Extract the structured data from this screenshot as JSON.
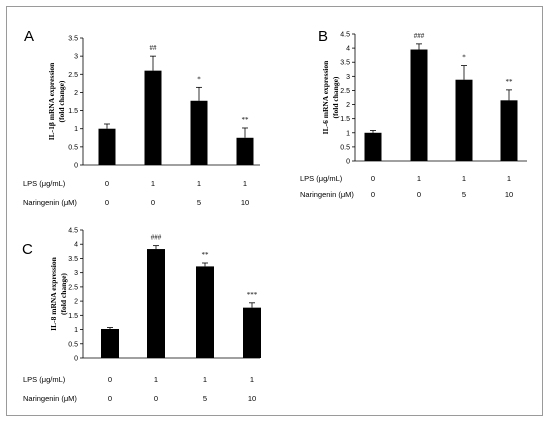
{
  "chart_data": [
    {
      "type": "bar",
      "panel": "A",
      "ylabel": "IL-1β mRNA expression",
      "ylabel2": "(fold change)",
      "ylim": [
        0,
        3.5
      ],
      "yticks": [
        "0",
        "0.5",
        "1",
        "1.5",
        "2",
        "2.5",
        "3",
        "3.5"
      ],
      "values": [
        1.0,
        2.6,
        1.77,
        0.75
      ],
      "errors": [
        0.13,
        0.4,
        0.37,
        0.27
      ],
      "significance": [
        "",
        "##",
        "*",
        "**"
      ],
      "treatments": [
        {
          "label": "LPS (μg/mL)",
          "values": [
            "0",
            "1",
            "1",
            "1"
          ]
        },
        {
          "label": "Naringenin (μM)",
          "values": [
            "0",
            "0",
            "5",
            "10"
          ]
        }
      ],
      "color": "#000000"
    },
    {
      "type": "bar",
      "panel": "B",
      "ylabel": "IL-6 mRNA expression",
      "ylabel2": "(fold change)",
      "ylim": [
        0,
        4.5
      ],
      "yticks": [
        "0",
        "0.5",
        "1",
        "1.5",
        "2",
        "2.5",
        "3",
        "3.5",
        "4",
        "4.5"
      ],
      "values": [
        1.0,
        3.95,
        2.88,
        2.15
      ],
      "errors": [
        0.08,
        0.2,
        0.5,
        0.37
      ],
      "significance": [
        "",
        "###",
        "*",
        "**"
      ],
      "treatments": [
        {
          "label": "LPS (μg/mL)",
          "values": [
            "0",
            "1",
            "1",
            "1"
          ]
        },
        {
          "label": "Naringenin (μM)",
          "values": [
            "0",
            "0",
            "5",
            "10"
          ]
        }
      ],
      "color": "#000000"
    },
    {
      "type": "bar",
      "panel": "C",
      "ylabel": "IL-8 mRNA expression",
      "ylabel2": "(fold change)",
      "ylim": [
        0,
        4.5
      ],
      "yticks": [
        "0",
        "0.5",
        "1",
        "1.5",
        "2",
        "2.5",
        "3",
        "3.5",
        "4",
        "4.5"
      ],
      "values": [
        1.02,
        3.83,
        3.22,
        1.77
      ],
      "errors": [
        0.05,
        0.12,
        0.12,
        0.17
      ],
      "significance": [
        "",
        "###",
        "**",
        "***"
      ],
      "treatments": [
        {
          "label": "LPS (μg/mL)",
          "values": [
            "0",
            "1",
            "1",
            "1"
          ]
        },
        {
          "label": "Naringenin (μM)",
          "values": [
            "0",
            "0",
            "5",
            "10"
          ]
        }
      ],
      "color": "#000000"
    }
  ]
}
